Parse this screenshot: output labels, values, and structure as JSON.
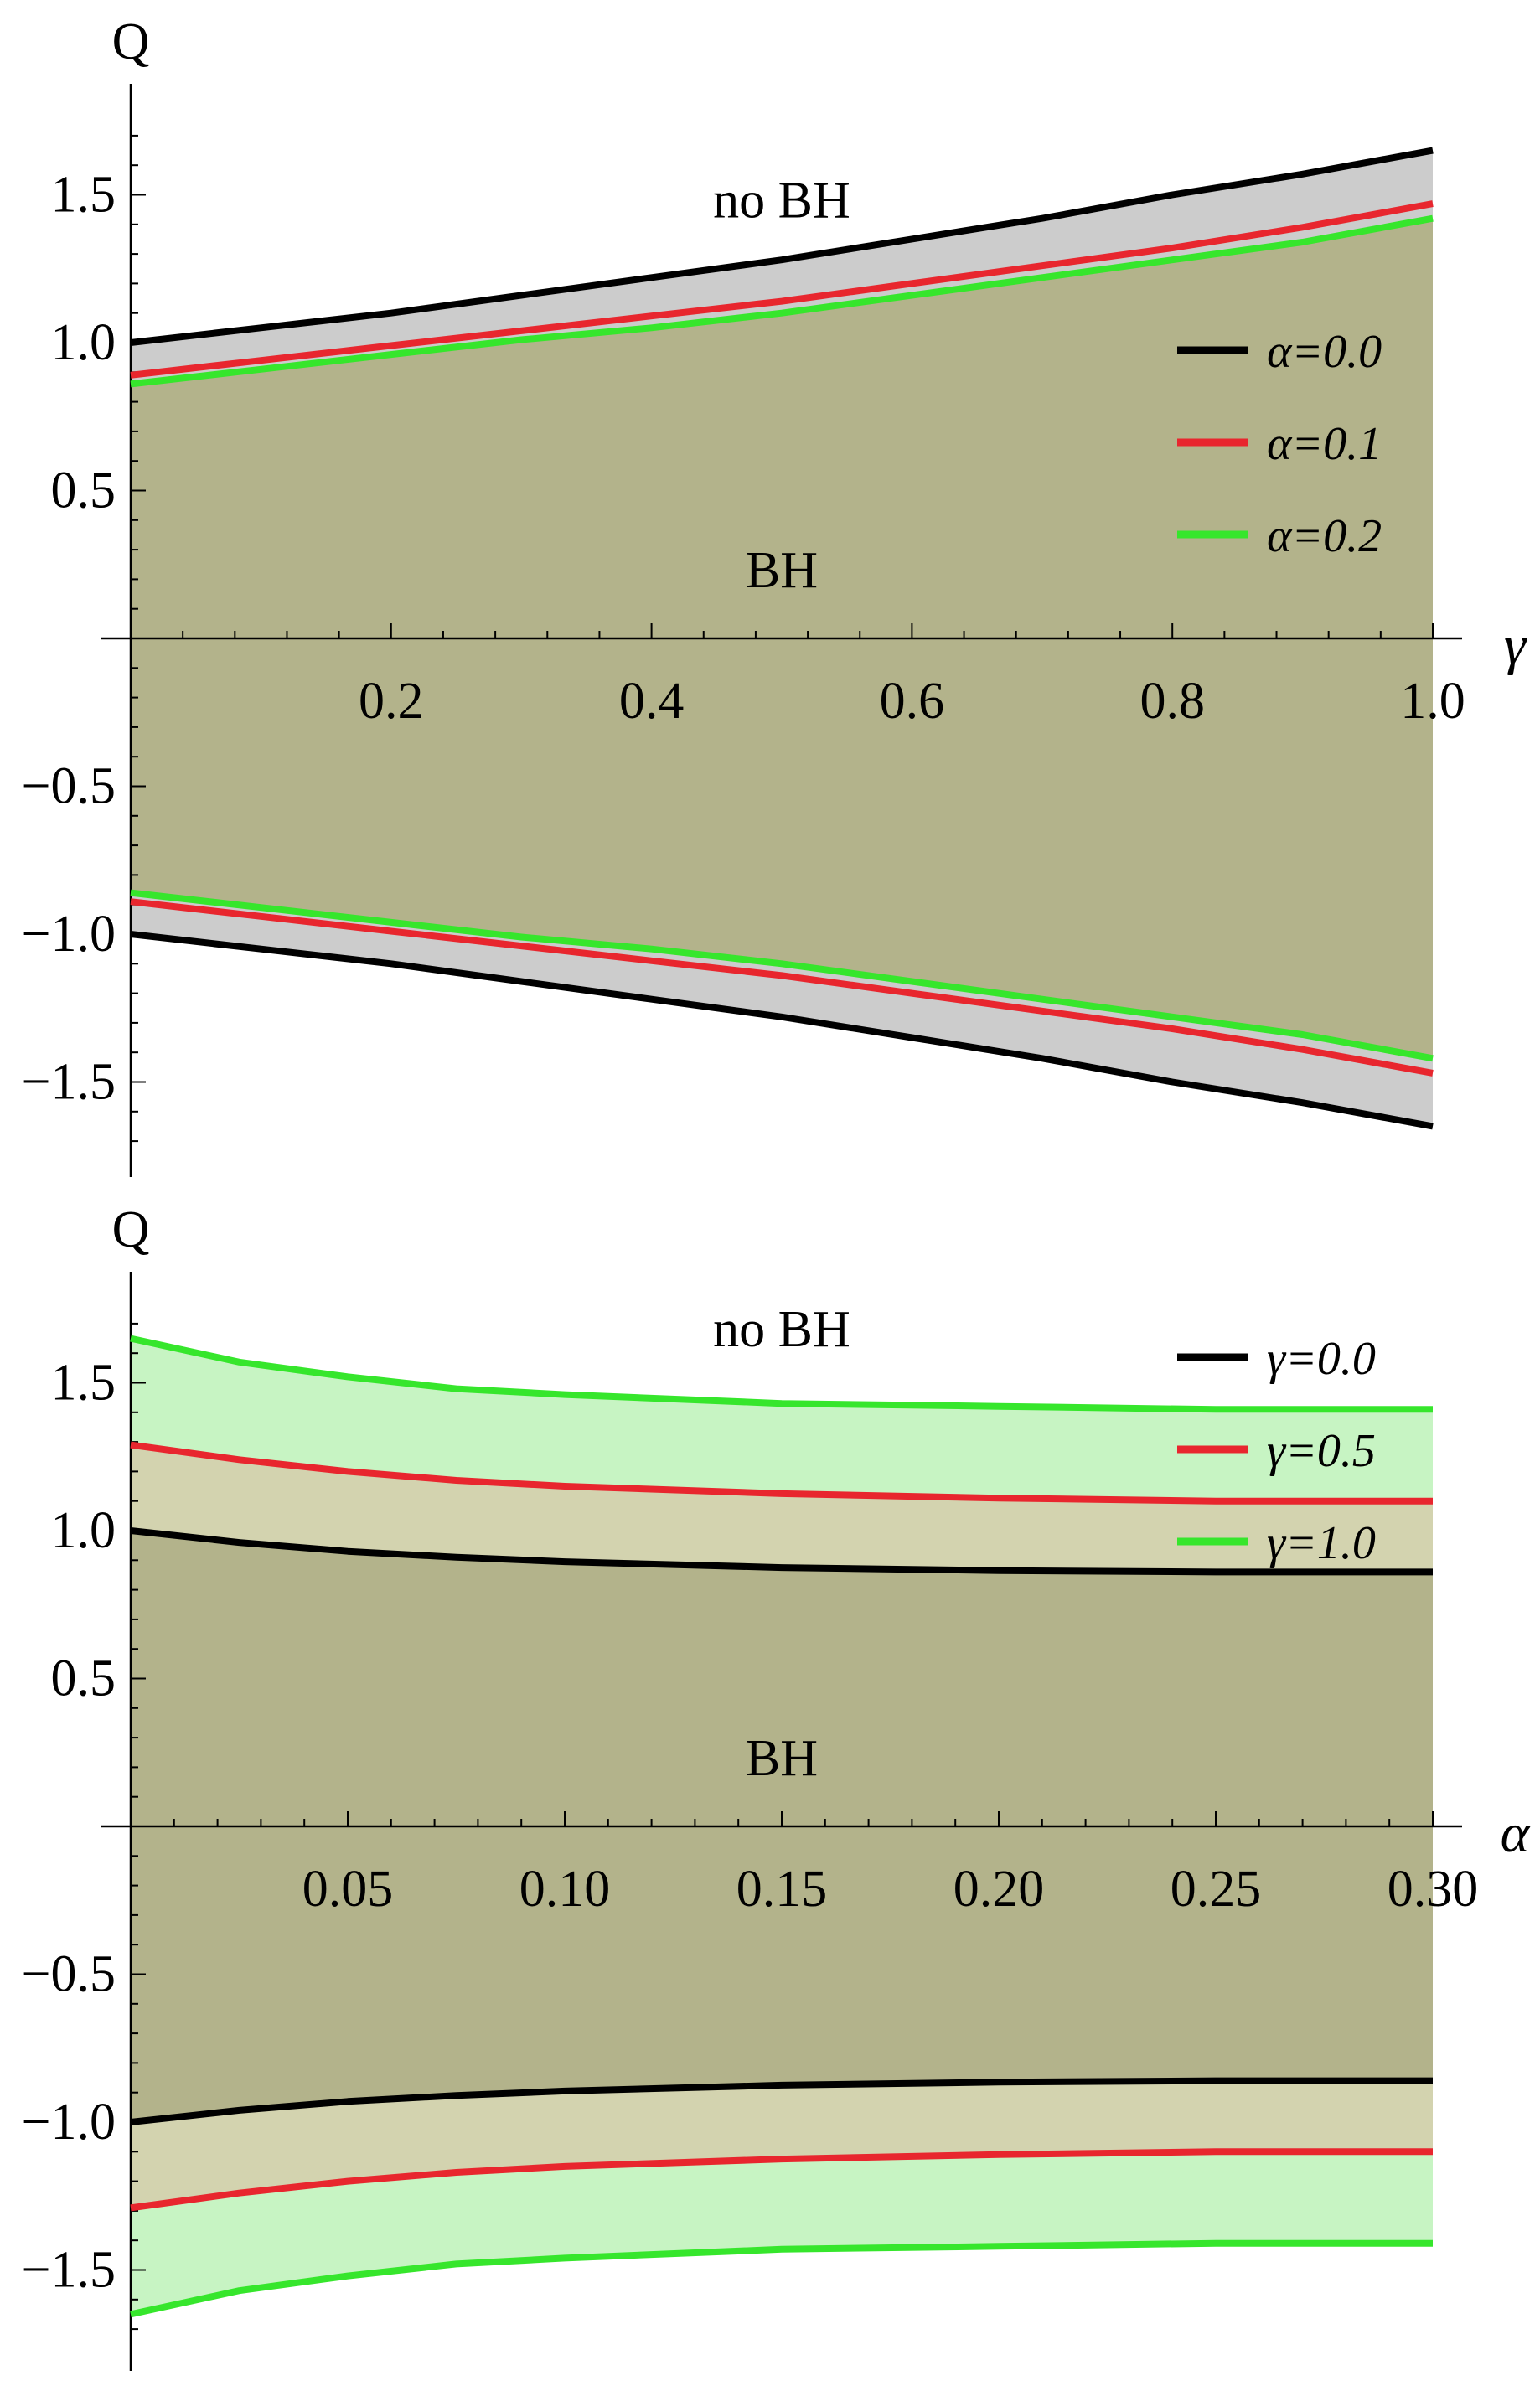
{
  "chart_data": [
    {
      "type": "line",
      "xlabel": "γ",
      "ylabel": "Q",
      "xlim": [
        0,
        1.0
      ],
      "ylim": [
        -1.75,
        1.8
      ],
      "x_ticks": [
        0.2,
        0.4,
        0.6,
        0.8,
        1.0
      ],
      "x_tick_labels": [
        "0.2",
        "0.4",
        "0.6",
        "0.8",
        "1.0"
      ],
      "y_ticks": [
        -1.5,
        -1.0,
        -0.5,
        0.5,
        1.0,
        1.5
      ],
      "y_tick_labels": [
        "−1.5",
        "−1.0",
        "−0.5",
        "0.5",
        "1.0",
        "1.5"
      ],
      "legend_position": "right",
      "annotations": [
        {
          "text": "no BH",
          "x": 0.5,
          "y": 1.48
        },
        {
          "text": "BH",
          "x": 0.5,
          "y": 0.23
        }
      ],
      "x": [
        0.0,
        0.1,
        0.2,
        0.3,
        0.4,
        0.5,
        0.6,
        0.7,
        0.8,
        0.9,
        1.0
      ],
      "series": [
        {
          "name": "α=0.0",
          "color": "#000000",
          "values": [
            1.0,
            1.05,
            1.1,
            1.16,
            1.22,
            1.28,
            1.35,
            1.42,
            1.5,
            1.57,
            1.65
          ]
        },
        {
          "name": "α=0.1",
          "color": "#e8262e",
          "values": [
            0.89,
            0.94,
            0.99,
            1.04,
            1.09,
            1.14,
            1.2,
            1.26,
            1.32,
            1.39,
            1.47
          ]
        },
        {
          "name": "α=0.2",
          "color": "#36e62c",
          "values": [
            0.86,
            0.91,
            0.96,
            1.01,
            1.05,
            1.1,
            1.16,
            1.22,
            1.28,
            1.34,
            1.42
          ]
        }
      ],
      "mirrored": true,
      "fill_colors": {
        "outer": "#cccccc",
        "inner": "#b3b38b"
      }
    },
    {
      "type": "line",
      "xlabel": "α",
      "ylabel": "Q",
      "xlim": [
        0,
        0.3
      ],
      "ylim": [
        -1.75,
        1.8
      ],
      "x_ticks": [
        0.05,
        0.1,
        0.15,
        0.2,
        0.25,
        0.3
      ],
      "x_tick_labels": [
        "0.05",
        "0.10",
        "0.15",
        "0.20",
        "0.25",
        "0.30"
      ],
      "y_ticks": [
        -1.5,
        -1.0,
        -0.5,
        0.5,
        1.0,
        1.5
      ],
      "y_tick_labels": [
        "−1.5",
        "−1.0",
        "−0.5",
        "0.5",
        "1.0",
        "1.5"
      ],
      "legend_position": "top-right",
      "annotations": [
        {
          "text": "no BH",
          "x": 0.15,
          "y": 1.68
        },
        {
          "text": "BH",
          "x": 0.15,
          "y": 0.23
        }
      ],
      "x": [
        0.0,
        0.025,
        0.05,
        0.075,
        0.1,
        0.15,
        0.2,
        0.25,
        0.3
      ],
      "series": [
        {
          "name": "γ=0.0",
          "color": "#000000",
          "values": [
            1.0,
            0.96,
            0.93,
            0.91,
            0.895,
            0.875,
            0.865,
            0.86,
            0.86
          ]
        },
        {
          "name": "γ=0.5",
          "color": "#e8262e",
          "values": [
            1.29,
            1.24,
            1.2,
            1.17,
            1.15,
            1.125,
            1.11,
            1.1,
            1.1
          ]
        },
        {
          "name": "γ=1.0",
          "color": "#36e62c",
          "values": [
            1.65,
            1.57,
            1.52,
            1.48,
            1.46,
            1.43,
            1.42,
            1.41,
            1.41
          ]
        }
      ],
      "mirrored": true,
      "fill_colors": {
        "band_green": "#c7f4c3",
        "band_mid": "#d3d3af",
        "inner": "#b3b38b"
      }
    }
  ]
}
